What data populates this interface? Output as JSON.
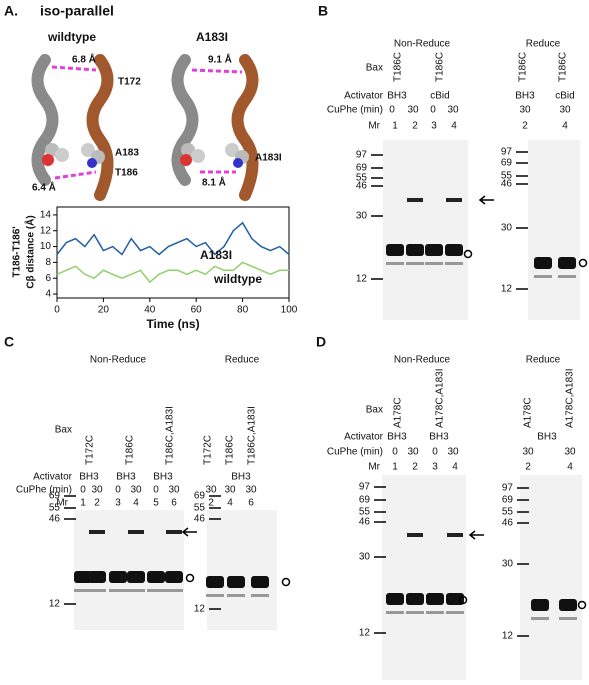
{
  "panels": {
    "A": {
      "letter": "A.",
      "title": "iso-parallel",
      "wt_title": "wildtype",
      "mut_title": "A183I",
      "wt_labels": {
        "dist_top": "6.8 Å",
        "res_top": "T172",
        "res_mid": "A183",
        "res_bot": "T186",
        "dist_bot": "6.4 Å"
      },
      "mut_labels": {
        "dist_top": "9.1 Å",
        "res_mid": "A183I",
        "dist_bot": "8.1 Å"
      }
    },
    "B": {
      "letter": "B",
      "non_reduce": {
        "title": "Non-Reduce",
        "bax_label": "Bax",
        "columns": [
          "T186C",
          "T186C"
        ],
        "activator_label": "Activator",
        "activators": [
          "BH3",
          "cBid"
        ],
        "cuphe_label": "CuPhe (min)",
        "cuphe": [
          "0",
          "30",
          "0",
          "30"
        ],
        "mr_label": "Mr",
        "lanes": [
          "1",
          "2",
          "3",
          "4"
        ],
        "markers": [
          "97",
          "69",
          "55",
          "46",
          "30",
          "12"
        ]
      },
      "reduce": {
        "title": "Reduce",
        "columns": [
          "T186C",
          "T186C"
        ],
        "activators": [
          "BH3",
          "cBid"
        ],
        "cuphe": [
          "30",
          "30"
        ],
        "lanes": [
          "2",
          "4"
        ],
        "markers": [
          "97",
          "69",
          "55",
          "46",
          "30",
          "12"
        ]
      }
    },
    "C": {
      "letter": "C",
      "non_reduce": {
        "title": "Non-Reduce",
        "bax_label": "Bax",
        "columns": [
          "T172C",
          "T186C",
          "T186C,A183I"
        ],
        "activator_label": "Activator",
        "activators": [
          "BH3",
          "BH3",
          "BH3"
        ],
        "cuphe_label": "CuPhe (min)",
        "cuphe": [
          "0",
          "30",
          "0",
          "30",
          "0",
          "30"
        ],
        "mr_label": "Mr",
        "lanes": [
          "1",
          "2",
          "3",
          "4",
          "5",
          "6"
        ],
        "markers": [
          "69",
          "55",
          "46",
          "12"
        ]
      },
      "reduce": {
        "title": "Reduce",
        "columns": [
          "T172C",
          "T186C",
          "T186C,A183I"
        ],
        "activators": [
          "BH3"
        ],
        "cuphe": [
          "30",
          "30",
          "30"
        ],
        "lanes": [
          "2",
          "4",
          "6"
        ],
        "markers": [
          "69",
          "55",
          "46",
          "12"
        ]
      }
    },
    "D": {
      "letter": "D",
      "non_reduce": {
        "title": "Non-Reduce",
        "bax_label": "Bax",
        "columns": [
          "A178C",
          "A178C,A183I"
        ],
        "activator_label": "Activator",
        "activators": [
          "BH3",
          "BH3"
        ],
        "cuphe_label": "CuPhe (min)",
        "cuphe": [
          "0",
          "30",
          "0",
          "30"
        ],
        "mr_label": "Mr",
        "lanes": [
          "1",
          "2",
          "3",
          "4"
        ],
        "markers": [
          "97",
          "69",
          "55",
          "46",
          "30",
          "12"
        ]
      },
      "reduce": {
        "title": "Reduce",
        "columns": [
          "A178C",
          "A178C,A183I"
        ],
        "activators": [
          "BH3"
        ],
        "cuphe": [
          "30",
          "30"
        ],
        "lanes": [
          "2",
          "4"
        ],
        "markers": [
          "97",
          "69",
          "55",
          "46",
          "30",
          "12"
        ]
      }
    }
  },
  "chart_data": {
    "type": "line",
    "ylabel": [
      "T186-T186'",
      "Cβ distance (Å)"
    ],
    "xlabel": "Time (ns)",
    "x": [
      0,
      4,
      8,
      12,
      16,
      20,
      24,
      28,
      32,
      36,
      40,
      44,
      48,
      52,
      56,
      60,
      64,
      68,
      72,
      76,
      80,
      84,
      88,
      92,
      96,
      100
    ],
    "series": [
      {
        "name": "A183I",
        "color": "#1f5fa8",
        "values": [
          9,
          10.5,
          11,
          10,
          11.5,
          9.5,
          10,
          9,
          11,
          9.5,
          10,
          9,
          10,
          10.5,
          11,
          10,
          10.5,
          9,
          10,
          12,
          13,
          11,
          10,
          9.5,
          10,
          9
        ]
      },
      {
        "name": "wildtype",
        "color": "#8fd16b",
        "values": [
          6.5,
          7,
          7.5,
          6.5,
          6,
          7,
          6.5,
          6,
          6.5,
          7,
          5.5,
          6.5,
          7,
          7,
          6.5,
          7,
          6.5,
          7.5,
          7,
          7,
          8,
          7.5,
          7,
          6.5,
          7,
          7
        ]
      }
    ],
    "xlim": [
      0,
      100
    ],
    "xticks": [
      0,
      20,
      40,
      60,
      80,
      100
    ],
    "ylim": [
      3.5,
      15
    ],
    "yticks": [
      4,
      6,
      8,
      10,
      12,
      14
    ]
  }
}
